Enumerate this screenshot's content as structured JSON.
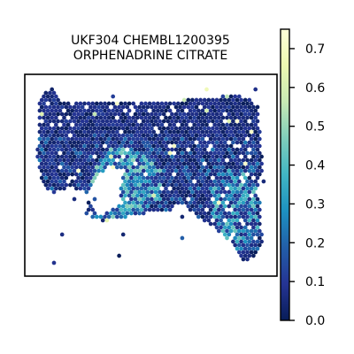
{
  "chart_data": {
    "type": "scatter",
    "subtype": "hexbin spatial map",
    "title_lines": [
      "UKF304 CHEMBL1200395",
      "ORPHENADRINE CITRATE"
    ],
    "xlabel": "",
    "ylabel": "",
    "axis_ticks_visible": false,
    "grid": false,
    "legend": "none",
    "colorbar": {
      "label": "",
      "colormap": "YlGnBu",
      "range": [
        0.0,
        0.75
      ],
      "ticks": [
        0.0,
        0.1,
        0.2,
        0.3,
        0.4,
        0.5,
        0.6,
        0.7
      ],
      "tick_labels": [
        "0.0",
        "0.1",
        "0.2",
        "0.3",
        "0.4",
        "0.5",
        "0.6",
        "0.7"
      ],
      "placement": "right"
    },
    "value_distribution": "tissue spots mostly 0.0–0.15; central-lower region and right lobe reach 0.2–0.45; few spots above 0.5"
  }
}
